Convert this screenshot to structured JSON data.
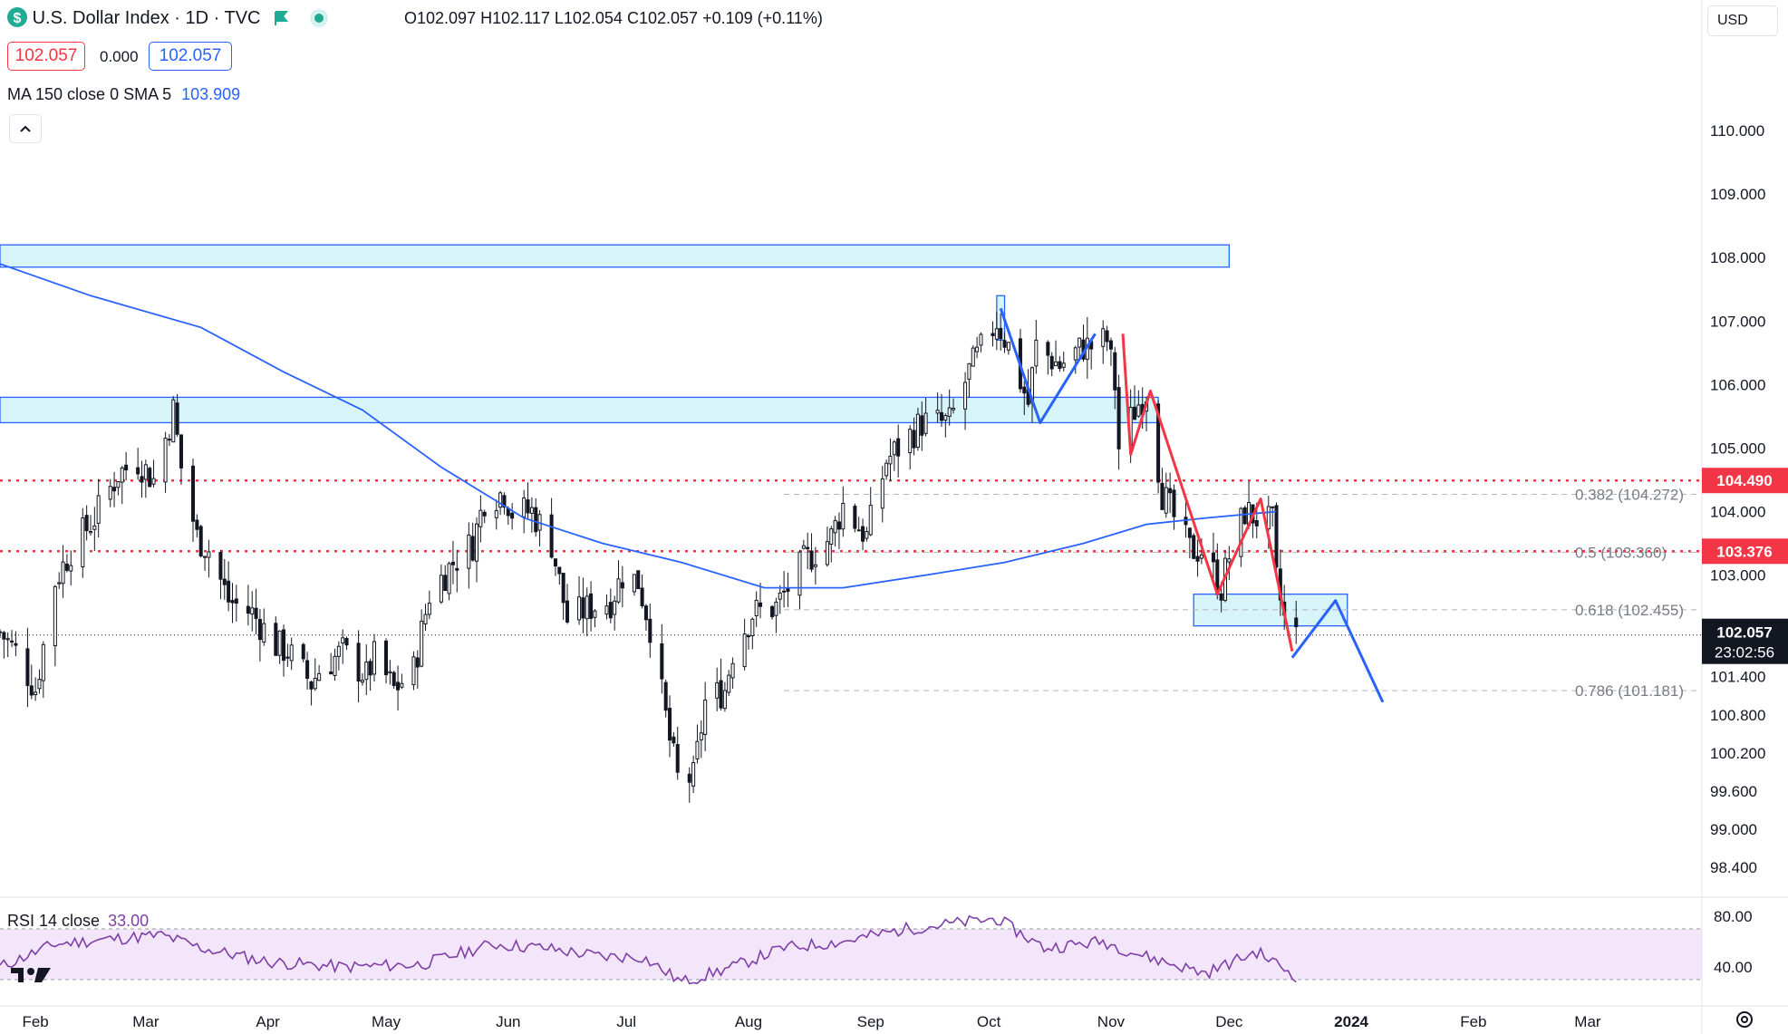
{
  "header": {
    "title": "U.S. Dollar Index · 1D · TVC",
    "ohlc_o_label": "O",
    "ohlc_o": "102.097",
    "ohlc_h_label": "H",
    "ohlc_h": "102.117",
    "ohlc_l_label": "L",
    "ohlc_l": "102.054",
    "ohlc_c_label": "C",
    "ohlc_c": "102.057",
    "change": "+0.109 (+0.11%)",
    "bid": "102.057",
    "spread": "0.000",
    "ask": "102.057",
    "indicator_label": "MA 150 close 0 SMA 5",
    "indicator_value": "103.909",
    "currency": "USD"
  },
  "colors": {
    "up": "#131722",
    "down": "#131722",
    "ma": "#2962ff",
    "zone_fill": "#d7f4f8",
    "zone_border": "#2962ff",
    "red_level": "#f23645",
    "rsi_line": "#7e3fa6",
    "rsi_band": "#f3e6fb",
    "label_text": "#131722"
  },
  "icons": [
    "dollar-coin-icon",
    "green-flag-icon",
    "market-open-dot-icon",
    "chevron-up-icon",
    "tradingview-logo-icon",
    "settings-gear-icon"
  ],
  "chart_data": {
    "type": "candlestick",
    "title": "U.S. Dollar Index · 1D · TVC",
    "y_ticks": [
      "110.000",
      "109.000",
      "108.000",
      "107.000",
      "106.000",
      "105.000",
      "104.000",
      "103.000",
      "101.400",
      "100.800",
      "100.200",
      "99.600",
      "99.000",
      "98.400"
    ],
    "y_tick_values": [
      110,
      109,
      108,
      107,
      106,
      105,
      104,
      103,
      101.4,
      100.8,
      100.2,
      99.6,
      99,
      98.4
    ],
    "ylim": [
      98.0,
      111.2
    ],
    "x_ticks": [
      "Feb",
      "Mar",
      "Apr",
      "May",
      "Jun",
      "Jul",
      "Aug",
      "Sep",
      "Oct",
      "Nov",
      "Dec",
      "2024",
      "Feb",
      "Mar"
    ],
    "x_tick_dates": [
      "2023-02-01",
      "2023-03-01",
      "2023-04-01",
      "2023-05-01",
      "2023-06-01",
      "2023-07-01",
      "2023-08-01",
      "2023-09-01",
      "2023-10-01",
      "2023-11-01",
      "2023-12-01",
      "2024-01-01",
      "2024-02-01",
      "2024-03-01"
    ],
    "xlim": [
      "2023-01-23",
      "2024-03-30"
    ],
    "price_path": [
      [
        "2023-01-23",
        102.1
      ],
      [
        "2023-01-27",
        101.8
      ],
      [
        "2023-02-01",
        101.2
      ],
      [
        "2023-02-06",
        102.9
      ],
      [
        "2023-02-10",
        103.4
      ],
      [
        "2023-02-16",
        103.9
      ],
      [
        "2023-02-22",
        104.6
      ],
      [
        "2023-02-27",
        104.8
      ],
      [
        "2023-03-03",
        104.5
      ],
      [
        "2023-03-08",
        105.6
      ],
      [
        "2023-03-10",
        104.7
      ],
      [
        "2023-03-14",
        103.6
      ],
      [
        "2023-03-17",
        103.4
      ],
      [
        "2023-03-22",
        102.6
      ],
      [
        "2023-03-28",
        102.4
      ],
      [
        "2023-04-03",
        101.9
      ],
      [
        "2023-04-06",
        101.8
      ],
      [
        "2023-04-12",
        101.3
      ],
      [
        "2023-04-14",
        101.5
      ],
      [
        "2023-04-20",
        101.8
      ],
      [
        "2023-04-26",
        101.4
      ],
      [
        "2023-04-28",
        101.7
      ],
      [
        "2023-05-03",
        101.2
      ],
      [
        "2023-05-08",
        101.5
      ],
      [
        "2023-05-12",
        102.7
      ],
      [
        "2023-05-18",
        103.2
      ],
      [
        "2023-05-23",
        103.5
      ],
      [
        "2023-05-26",
        104.2
      ],
      [
        "2023-05-31",
        104.3
      ],
      [
        "2023-06-02",
        104.0
      ],
      [
        "2023-06-07",
        104.0
      ],
      [
        "2023-06-12",
        103.5
      ],
      [
        "2023-06-16",
        102.3
      ],
      [
        "2023-06-22",
        102.5
      ],
      [
        "2023-06-27",
        102.6
      ],
      [
        "2023-06-30",
        103.0
      ],
      [
        "2023-07-04",
        102.9
      ],
      [
        "2023-07-07",
        102.2
      ],
      [
        "2023-07-12",
        100.4
      ],
      [
        "2023-07-14",
        99.8
      ],
      [
        "2023-07-18",
        99.8
      ],
      [
        "2023-07-21",
        101.0
      ],
      [
        "2023-07-26",
        101.2
      ],
      [
        "2023-07-28",
        101.8
      ],
      [
        "2023-08-02",
        102.4
      ],
      [
        "2023-08-08",
        102.5
      ],
      [
        "2023-08-15",
        103.2
      ],
      [
        "2023-08-22",
        103.6
      ],
      [
        "2023-08-25",
        104.1
      ],
      [
        "2023-08-31",
        103.6
      ],
      [
        "2023-09-05",
        104.8
      ],
      [
        "2023-09-08",
        105.0
      ],
      [
        "2023-09-14",
        105.4
      ],
      [
        "2023-09-21",
        105.4
      ],
      [
        "2023-09-26",
        106.2
      ],
      [
        "2023-10-03",
        107.0
      ],
      [
        "2023-10-06",
        106.6
      ],
      [
        "2023-10-11",
        105.7
      ],
      [
        "2023-10-13",
        106.6
      ],
      [
        "2023-10-19",
        106.3
      ],
      [
        "2023-10-25",
        106.6
      ],
      [
        "2023-10-27",
        106.6
      ],
      [
        "2023-10-31",
        106.7
      ],
      [
        "2023-11-02",
        106.0
      ],
      [
        "2023-11-03",
        105.0
      ],
      [
        "2023-11-07",
        105.6
      ],
      [
        "2023-11-10",
        105.9
      ],
      [
        "2023-11-14",
        104.3
      ],
      [
        "2023-11-17",
        103.9
      ],
      [
        "2023-11-21",
        103.4
      ],
      [
        "2023-11-24",
        103.4
      ],
      [
        "2023-11-29",
        102.8
      ],
      [
        "2023-12-01",
        103.3
      ],
      [
        "2023-12-05",
        104.0
      ],
      [
        "2023-12-08",
        103.9
      ],
      [
        "2023-12-12",
        103.8
      ],
      [
        "2023-12-13",
        102.9
      ],
      [
        "2023-12-15",
        102.3
      ],
      [
        "2023-12-18",
        102.06
      ]
    ],
    "moving_average": {
      "name": "MA 150 close 0 SMA 5",
      "last_value": 103.909,
      "points": [
        [
          "2023-01-23",
          107.9
        ],
        [
          "2023-02-15",
          107.4
        ],
        [
          "2023-03-15",
          106.9
        ],
        [
          "2023-04-05",
          106.2
        ],
        [
          "2023-04-25",
          105.6
        ],
        [
          "2023-05-15",
          104.7
        ],
        [
          "2023-06-05",
          103.9
        ],
        [
          "2023-06-25",
          103.5
        ],
        [
          "2023-07-15",
          103.2
        ],
        [
          "2023-08-05",
          102.8
        ],
        [
          "2023-08-25",
          102.8
        ],
        [
          "2023-09-15",
          103.0
        ],
        [
          "2023-10-05",
          103.2
        ],
        [
          "2023-10-25",
          103.5
        ],
        [
          "2023-11-10",
          103.8
        ],
        [
          "2023-11-25",
          103.9
        ],
        [
          "2023-12-13",
          104.0
        ]
      ]
    },
    "annotations": {
      "resistance_zones": [
        {
          "start": "2023-01-23",
          "end": "2023-12-01",
          "low": 107.85,
          "high": 108.2
        },
        {
          "start": "2023-01-23",
          "end": "2023-11-13",
          "low": 105.4,
          "high": 105.8
        }
      ],
      "support_zone": {
        "start": "2023-11-22",
        "end": "2023-12-31",
        "low": 102.2,
        "high": 102.7
      },
      "small_box": {
        "start": "2023-10-03",
        "end": "2023-10-05",
        "low": 106.7,
        "high": 107.4
      },
      "red_levels": [
        {
          "value": 104.49,
          "label": "104.490"
        },
        {
          "value": 103.376,
          "label": "103.376"
        }
      ],
      "fib_levels": [
        {
          "label": "0.382 (104.272)",
          "value": 104.272
        },
        {
          "label": "0.5 (103.360)",
          "value": 103.36
        },
        {
          "label": "0.618 (102.455)",
          "value": 102.455
        },
        {
          "label": "0.786 (101.181)",
          "value": 101.181
        }
      ],
      "current_price": {
        "value": 102.057,
        "label": "102.057",
        "countdown": "23:02:56"
      },
      "projection_path": [
        [
          "2023-12-17",
          101.7
        ],
        [
          "2023-12-28",
          102.6
        ],
        [
          "2024-01-09",
          101.0
        ]
      ],
      "red_drawn_line": [
        [
          "2023-11-04",
          106.8
        ],
        [
          "2023-11-06",
          104.9
        ],
        [
          "2023-11-11",
          105.9
        ],
        [
          "2023-11-28",
          102.7
        ],
        [
          "2023-12-09",
          104.2
        ],
        [
          "2023-12-17",
          101.8
        ]
      ],
      "blue_drawn_line": [
        [
          "2023-10-04",
          107.2
        ],
        [
          "2023-10-14",
          105.4
        ],
        [
          "2023-10-28",
          106.8
        ]
      ]
    },
    "rsi": {
      "label": "RSI 14 close",
      "value_label": "33.00",
      "ylim": [
        20,
        90
      ],
      "y_ticks": [
        "80.00",
        "40.00"
      ],
      "y_tick_values": [
        80,
        40
      ],
      "band": [
        30,
        70
      ],
      "points": [
        [
          "2023-01-23",
          40
        ],
        [
          "2023-02-06",
          58
        ],
        [
          "2023-02-20",
          62
        ],
        [
          "2023-03-05",
          65
        ],
        [
          "2023-03-15",
          55
        ],
        [
          "2023-04-01",
          44
        ],
        [
          "2023-04-20",
          40
        ],
        [
          "2023-05-10",
          42
        ],
        [
          "2023-05-28",
          58
        ],
        [
          "2023-06-10",
          55
        ],
        [
          "2023-06-25",
          48
        ],
        [
          "2023-07-05",
          48
        ],
        [
          "2023-07-15",
          28
        ],
        [
          "2023-07-28",
          40
        ],
        [
          "2023-08-10",
          55
        ],
        [
          "2023-08-25",
          60
        ],
        [
          "2023-09-10",
          70
        ],
        [
          "2023-10-03",
          78
        ],
        [
          "2023-10-15",
          55
        ],
        [
          "2023-10-30",
          60
        ],
        [
          "2023-11-10",
          48
        ],
        [
          "2023-11-25",
          35
        ],
        [
          "2023-12-08",
          52
        ],
        [
          "2023-12-18",
          33
        ]
      ]
    }
  }
}
